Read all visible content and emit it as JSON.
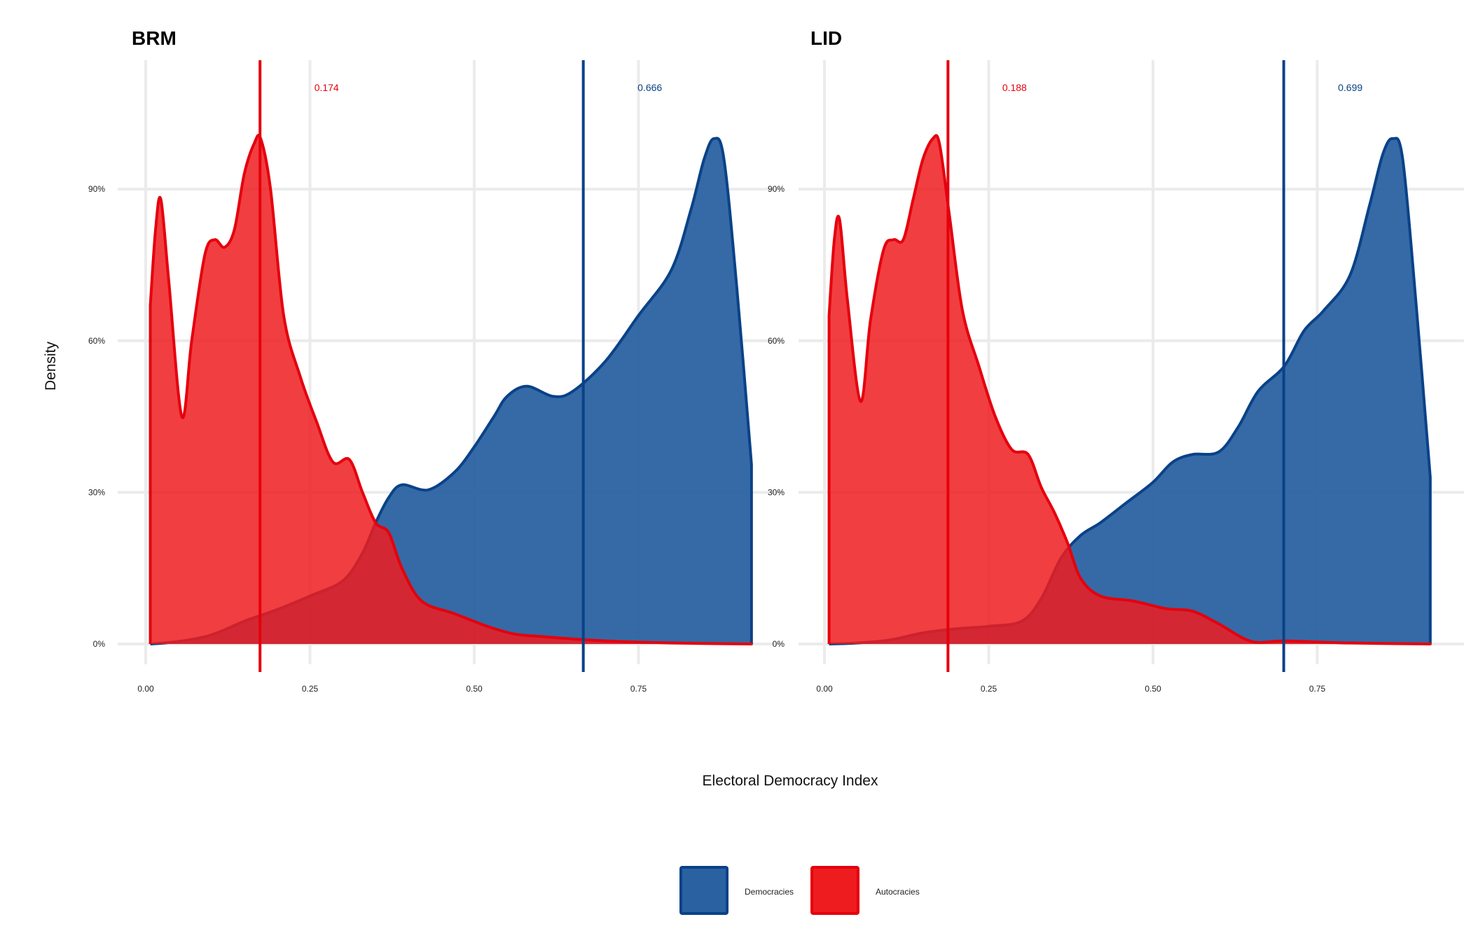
{
  "colors": {
    "democracies_fill": "#2a62a1",
    "democracies_line": "#0a4288",
    "autocracies_fill": "#ee1c1e",
    "autocracies_line": "#e5000d",
    "grid": "#ebebeb"
  },
  "chart_data": [
    {
      "type": "area",
      "title": "BRM",
      "xlabel": "Electoral Democracy Index",
      "ylabel": "Density",
      "xlim": [
        0,
        0.92
      ],
      "ylim": [
        0,
        1.08
      ],
      "x_ticks": [
        {
          "value": 0,
          "label": "0.00"
        },
        {
          "value": 0.25,
          "label": "0.25"
        },
        {
          "value": 0.5,
          "label": "0.50"
        },
        {
          "value": 0.75,
          "label": "0.75"
        }
      ],
      "y_ticks": [
        {
          "value": 0,
          "label": "0%"
        },
        {
          "value": 0.3,
          "label": "30%"
        },
        {
          "value": 0.6,
          "label": "60%"
        },
        {
          "value": 0.9,
          "label": "90%"
        }
      ],
      "grid": true,
      "series": [
        {
          "name": "Democracies",
          "x": [
            0.007,
            0.05,
            0.1,
            0.15,
            0.2,
            0.25,
            0.3,
            0.33,
            0.35,
            0.37,
            0.39,
            0.43,
            0.47,
            0.5,
            0.53,
            0.55,
            0.58,
            0.62,
            0.65,
            0.7,
            0.75,
            0.8,
            0.83,
            0.85,
            0.865,
            0.88,
            0.9,
            0.922
          ],
          "y": [
            0.0,
            0.005,
            0.018,
            0.045,
            0.068,
            0.095,
            0.125,
            0.18,
            0.24,
            0.29,
            0.315,
            0.305,
            0.34,
            0.39,
            0.45,
            0.49,
            0.51,
            0.49,
            0.5,
            0.56,
            0.65,
            0.74,
            0.86,
            0.96,
            1.0,
            0.96,
            0.7,
            0.355
          ]
        },
        {
          "name": "Autocracies",
          "x": [
            0.007,
            0.015,
            0.023,
            0.035,
            0.055,
            0.07,
            0.09,
            0.105,
            0.12,
            0.135,
            0.15,
            0.165,
            0.175,
            0.19,
            0.21,
            0.235,
            0.26,
            0.285,
            0.31,
            0.33,
            0.35,
            0.37,
            0.39,
            0.42,
            0.47,
            0.52,
            0.56,
            0.6,
            0.65,
            0.7,
            0.8,
            0.922
          ],
          "y": [
            0.67,
            0.82,
            0.88,
            0.72,
            0.45,
            0.6,
            0.77,
            0.8,
            0.785,
            0.82,
            0.93,
            0.99,
            1.0,
            0.9,
            0.65,
            0.53,
            0.44,
            0.36,
            0.365,
            0.3,
            0.24,
            0.22,
            0.15,
            0.085,
            0.06,
            0.035,
            0.02,
            0.015,
            0.01,
            0.006,
            0.002,
            0.0
          ]
        }
      ],
      "mean_lines": [
        {
          "series": "Autocracies",
          "value": 0.174,
          "label": "0.174"
        },
        {
          "series": "Democracies",
          "value": 0.666,
          "label": "0.666"
        }
      ]
    },
    {
      "type": "area",
      "title": "LID",
      "xlabel": "Electoral Democracy Index",
      "ylabel": "Density",
      "xlim": [
        0,
        0.92
      ],
      "ylim": [
        0,
        1.08
      ],
      "x_ticks": [
        {
          "value": 0,
          "label": "0.00"
        },
        {
          "value": 0.25,
          "label": "0.25"
        },
        {
          "value": 0.5,
          "label": "0.50"
        },
        {
          "value": 0.75,
          "label": "0.75"
        }
      ],
      "y_ticks": [
        {
          "value": 0,
          "label": "0%"
        },
        {
          "value": 0.3,
          "label": "30%"
        },
        {
          "value": 0.6,
          "label": "60%"
        },
        {
          "value": 0.9,
          "label": "90%"
        }
      ],
      "grid": true,
      "series": [
        {
          "name": "Democracies",
          "x": [
            0.007,
            0.05,
            0.1,
            0.15,
            0.2,
            0.25,
            0.3,
            0.33,
            0.36,
            0.39,
            0.42,
            0.46,
            0.5,
            0.53,
            0.56,
            0.6,
            0.63,
            0.66,
            0.7,
            0.73,
            0.76,
            0.8,
            0.83,
            0.85,
            0.865,
            0.88,
            0.9,
            0.922
          ],
          "y": [
            0.0,
            0.002,
            0.008,
            0.022,
            0.03,
            0.035,
            0.045,
            0.09,
            0.17,
            0.215,
            0.24,
            0.28,
            0.32,
            0.36,
            0.375,
            0.38,
            0.43,
            0.5,
            0.55,
            0.62,
            0.66,
            0.73,
            0.87,
            0.97,
            1.0,
            0.96,
            0.68,
            0.33
          ]
        },
        {
          "name": "Autocracies",
          "x": [
            0.007,
            0.015,
            0.023,
            0.035,
            0.055,
            0.07,
            0.09,
            0.105,
            0.12,
            0.135,
            0.15,
            0.165,
            0.175,
            0.19,
            0.21,
            0.235,
            0.26,
            0.285,
            0.31,
            0.33,
            0.35,
            0.37,
            0.39,
            0.42,
            0.47,
            0.52,
            0.56,
            0.6,
            0.65,
            0.7,
            0.8,
            0.922
          ],
          "y": [
            0.65,
            0.8,
            0.84,
            0.68,
            0.48,
            0.64,
            0.78,
            0.8,
            0.8,
            0.88,
            0.96,
            1.0,
            0.99,
            0.85,
            0.66,
            0.55,
            0.45,
            0.385,
            0.375,
            0.31,
            0.26,
            0.2,
            0.13,
            0.095,
            0.085,
            0.07,
            0.065,
            0.04,
            0.005,
            0.006,
            0.002,
            0.0
          ]
        }
      ],
      "mean_lines": [
        {
          "series": "Autocracies",
          "value": 0.188,
          "label": "0.188"
        },
        {
          "series": "Democracies",
          "value": 0.699,
          "label": "0.699"
        }
      ]
    }
  ],
  "axis_titles": {
    "x": "Electoral Democracy Index",
    "y": "Density"
  },
  "legend": {
    "placement": "bottom",
    "items": [
      {
        "label": "Democracies",
        "key": "Democracies"
      },
      {
        "label": "Autocracies",
        "key": "Autocracies"
      }
    ]
  }
}
